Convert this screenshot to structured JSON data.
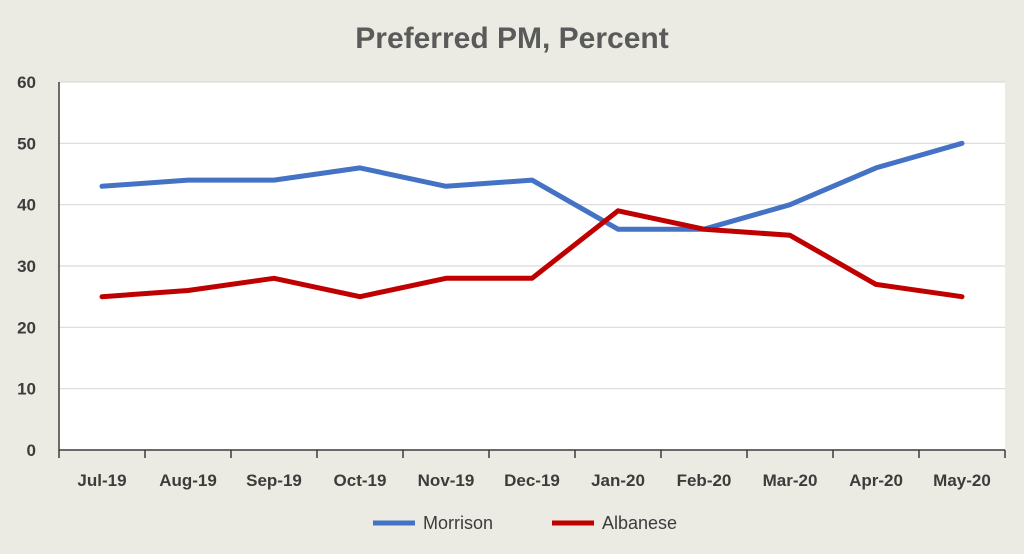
{
  "chart_data": {
    "type": "line",
    "title": "Preferred PM, Percent",
    "xlabel": "",
    "ylabel": "",
    "categories": [
      "Jul-19",
      "Aug-19",
      "Sep-19",
      "Oct-19",
      "Nov-19",
      "Dec-19",
      "Jan-20",
      "Feb-20",
      "Mar-20",
      "Apr-20",
      "May-20"
    ],
    "yticks": [
      0,
      10,
      20,
      30,
      40,
      50,
      60
    ],
    "ylim": [
      0,
      60
    ],
    "grid": true,
    "legend": "bottom",
    "series": [
      {
        "name": "Morrison",
        "color": "#4472c4",
        "values": [
          43,
          44,
          44,
          46,
          43,
          44,
          36,
          36,
          40,
          46,
          50
        ]
      },
      {
        "name": "Albanese",
        "color": "#c00000",
        "values": [
          25,
          26,
          28,
          25,
          28,
          28,
          39,
          36,
          35,
          27,
          25
        ]
      }
    ]
  }
}
